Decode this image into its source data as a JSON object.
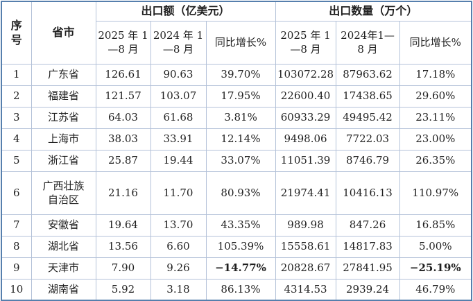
{
  "table": {
    "header": {
      "index_label": "序\n号",
      "province_label": "省市",
      "group_export_value": "出口额（亿美元）",
      "group_export_quantity": "出口数量（万个）",
      "sub_2025_value": "2025 年 1\n—8 月",
      "sub_2024_value": "2024 年 1\n—8 月",
      "sub_yoy_value": "同比增长%",
      "sub_2025_qty": "2025 年 1\n—8 月",
      "sub_2024_qty": "2024年1—\n8 月",
      "sub_yoy_qty": "同比增长%"
    },
    "rows": [
      {
        "no": "1",
        "province": "广东省",
        "values": [
          "126.61",
          "90.63",
          "39.70%",
          "103072.28",
          "87963.62",
          "17.18%"
        ]
      },
      {
        "no": "2",
        "province": "福建省",
        "values": [
          "121.57",
          "103.07",
          "17.95%",
          "22600.40",
          "17438.65",
          "29.60%"
        ]
      },
      {
        "no": "3",
        "province": "江苏省",
        "values": [
          "64.03",
          "61.68",
          "3.81%",
          "60933.29",
          "49495.42",
          "23.11%"
        ]
      },
      {
        "no": "4",
        "province": "上海市",
        "values": [
          "38.03",
          "33.91",
          "12.14%",
          "9498.06",
          "7722.03",
          "23.00%"
        ]
      },
      {
        "no": "5",
        "province": "浙江省",
        "values": [
          "25.87",
          "19.44",
          "33.07%",
          "11051.39",
          "8746.79",
          "26.35%"
        ]
      },
      {
        "no": "6",
        "province": "广西壮族\n自治区",
        "values": [
          "21.16",
          "11.70",
          "80.93%",
          "21974.41",
          "10416.13",
          "110.97%"
        ],
        "tall": true
      },
      {
        "no": "7",
        "province": "安徽省",
        "values": [
          "19.64",
          "13.70",
          "43.35%",
          "989.98",
          "847.26",
          "16.85%"
        ]
      },
      {
        "no": "8",
        "province": "湖北省",
        "values": [
          "13.56",
          "6.60",
          "105.39%",
          "15558.61",
          "14817.83",
          "5.00%"
        ]
      },
      {
        "no": "9",
        "province": "天津市",
        "values": [
          "7.90",
          "9.26",
          "−14.77%",
          "20828.67",
          "27841.95",
          "−25.19%"
        ]
      },
      {
        "no": "10",
        "province": "湖南省",
        "values": [
          "5.92",
          "3.18",
          "86.13%",
          "4314.53",
          "2939.24",
          "46.79%"
        ]
      }
    ],
    "colors": {
      "outer_border": "#567fad",
      "grid_line": "#b3c1d8",
      "text": "#1f1f1f",
      "negative": "#ff0000"
    }
  }
}
